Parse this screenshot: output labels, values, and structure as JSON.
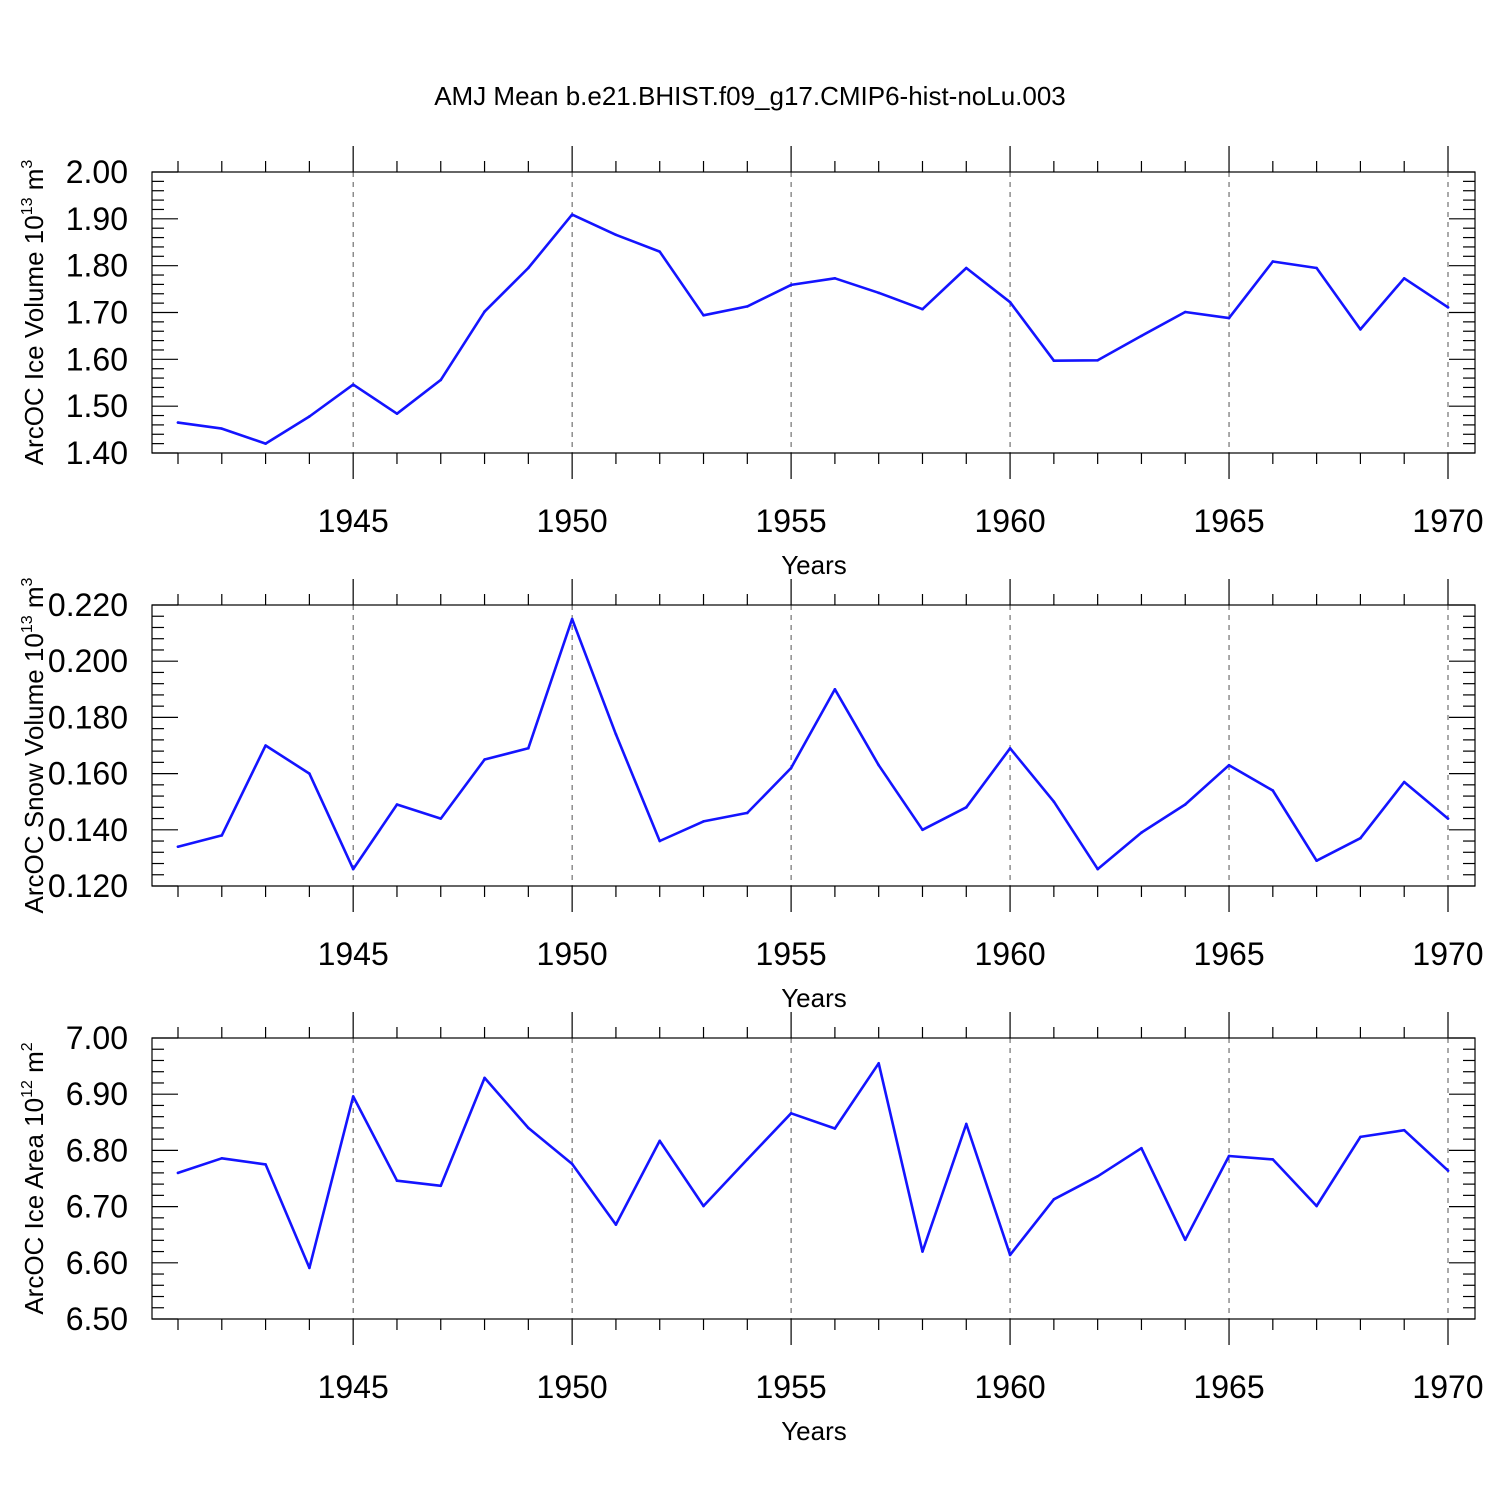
{
  "title": "AMJ Mean b.e21.BHIST.f09_g17.CMIP6-hist-noLu.003",
  "colors": {
    "line": "#1414ff",
    "grid": "#555555",
    "axis": "#000000"
  },
  "chart_data": [
    {
      "type": "line",
      "xlabel": "Years",
      "ylabel": {
        "text": "ArcOC Ice Volume 10",
        "exp": "13",
        "unit": " m",
        "unit_exp": "3"
      },
      "xlim": [
        1941,
        1970
      ],
      "ylim": [
        1.4,
        2.0
      ],
      "yticks": [
        "1.40",
        "1.50",
        "1.60",
        "1.70",
        "1.80",
        "1.90",
        "2.00"
      ],
      "xticks": [
        "1945",
        "1950",
        "1955",
        "1960",
        "1965",
        "1970"
      ],
      "grid": "dashed vertical at major x ticks",
      "x": [
        1941,
        1942,
        1943,
        1944,
        1945,
        1946,
        1947,
        1948,
        1949,
        1950,
        1951,
        1952,
        1953,
        1954,
        1955,
        1956,
        1957,
        1958,
        1959,
        1960,
        1961,
        1962,
        1963,
        1964,
        1965,
        1966,
        1967,
        1968,
        1969,
        1970
      ],
      "y": [
        1.465,
        1.452,
        1.42,
        1.478,
        1.546,
        1.484,
        1.556,
        1.702,
        1.795,
        1.909,
        1.866,
        1.83,
        1.694,
        1.713,
        1.759,
        1.773,
        1.742,
        1.707,
        1.795,
        1.722,
        1.597,
        1.598,
        1.65,
        1.701,
        1.688,
        1.809,
        1.795,
        1.664,
        1.773,
        1.711
      ]
    },
    {
      "type": "line",
      "xlabel": "Years",
      "ylabel": {
        "text": "ArcOC Snow Volume 10",
        "exp": "13",
        "unit": " m",
        "unit_exp": "3"
      },
      "xlim": [
        1941,
        1970
      ],
      "ylim": [
        0.12,
        0.22
      ],
      "yticks": [
        "0.120",
        "0.140",
        "0.160",
        "0.180",
        "0.200",
        "0.220"
      ],
      "xticks": [
        "1945",
        "1950",
        "1955",
        "1960",
        "1965",
        "1970"
      ],
      "grid": "dashed vertical at major x ticks",
      "x": [
        1941,
        1942,
        1943,
        1944,
        1945,
        1946,
        1947,
        1948,
        1949,
        1950,
        1951,
        1952,
        1953,
        1954,
        1955,
        1956,
        1957,
        1958,
        1959,
        1960,
        1961,
        1962,
        1963,
        1964,
        1965,
        1966,
        1967,
        1968,
        1969,
        1970
      ],
      "y": [
        0.134,
        0.138,
        0.17,
        0.16,
        0.126,
        0.149,
        0.144,
        0.165,
        0.169,
        0.215,
        0.174,
        0.136,
        0.143,
        0.146,
        0.162,
        0.19,
        0.163,
        0.14,
        0.148,
        0.169,
        0.15,
        0.126,
        0.139,
        0.149,
        0.163,
        0.154,
        0.129,
        0.137,
        0.157,
        0.144
      ]
    },
    {
      "type": "line",
      "xlabel": "Years",
      "ylabel": {
        "text": "ArcOC Ice Area 10",
        "exp": "12",
        "unit": " m",
        "unit_exp": "2"
      },
      "xlim": [
        1941,
        1970
      ],
      "ylim": [
        6.5,
        7.0
      ],
      "yticks": [
        "6.50",
        "6.60",
        "6.70",
        "6.80",
        "6.90",
        "7.00"
      ],
      "xticks": [
        "1945",
        "1950",
        "1955",
        "1960",
        "1965",
        "1970"
      ],
      "grid": "dashed vertical at major x ticks",
      "x": [
        1941,
        1942,
        1943,
        1944,
        1945,
        1946,
        1947,
        1948,
        1949,
        1950,
        1951,
        1952,
        1953,
        1954,
        1955,
        1956,
        1957,
        1958,
        1959,
        1960,
        1961,
        1962,
        1963,
        1964,
        1965,
        1966,
        1967,
        1968,
        1969,
        1970
      ],
      "y": [
        6.76,
        6.786,
        6.775,
        6.591,
        6.896,
        6.746,
        6.737,
        6.929,
        6.84,
        6.776,
        6.668,
        6.817,
        6.701,
        6.784,
        6.866,
        6.839,
        6.955,
        6.62,
        6.847,
        6.614,
        6.713,
        6.754,
        6.804,
        6.641,
        6.79,
        6.784,
        6.701,
        6.824,
        6.836,
        6.764
      ]
    }
  ]
}
